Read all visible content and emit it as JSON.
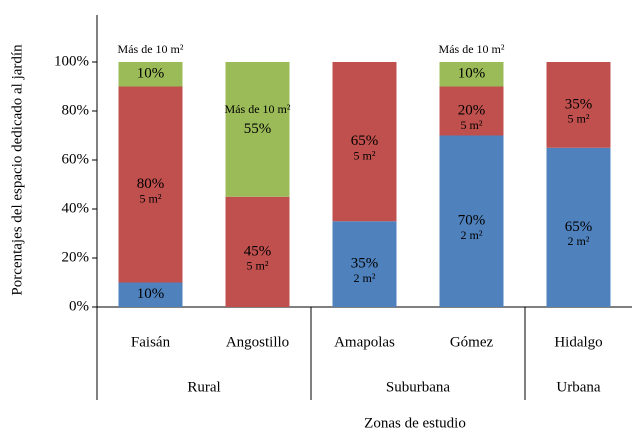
{
  "chart_data": {
    "type": "stacked_bar",
    "xlabel": "Zonas de estudio",
    "ylabel": "Porcentajes del espacio dedicado al jardín",
    "categories": [
      "Faisán",
      "Angostillo",
      "Amapolas",
      "Gómez",
      "Hidalgo"
    ],
    "groups": [
      {
        "name": "Rural",
        "size": 2
      },
      {
        "name": "Suburbana",
        "size": 2
      },
      {
        "name": "Urbana",
        "size": 1
      }
    ],
    "series": [
      {
        "name": "2 m²",
        "color": "#4f81bd",
        "values": [
          10,
          null,
          35,
          70,
          65
        ],
        "value_labels": [
          "10%",
          null,
          "35%",
          "70%",
          "65%"
        ]
      },
      {
        "name": "5 m²",
        "color": "#c0504d",
        "values": [
          80,
          45,
          65,
          20,
          35
        ],
        "value_labels": [
          "80%",
          "45%",
          "65%",
          "20%",
          "35%"
        ]
      },
      {
        "name": "Más de 10 m²",
        "color": "#9bbb59",
        "values": [
          10,
          55,
          null,
          10,
          null
        ],
        "value_labels": [
          "10%",
          "55%",
          null,
          "10%",
          null
        ]
      }
    ],
    "ylim": [
      0,
      100
    ],
    "yticks": [
      {
        "value": 0,
        "label": "0%"
      },
      {
        "value": 20,
        "label": "20%"
      },
      {
        "value": 40,
        "label": "40%"
      },
      {
        "value": 60,
        "label": "60%"
      },
      {
        "value": 80,
        "label": "80%"
      },
      {
        "value": 100,
        "label": "100%"
      }
    ]
  }
}
